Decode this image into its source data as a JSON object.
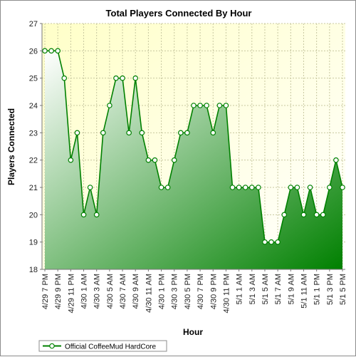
{
  "chart_data": {
    "type": "area",
    "title": "Total Players Connected By Hour",
    "xlabel": "Hour",
    "ylabel": "Players Connected",
    "ylim": [
      18,
      27
    ],
    "yticks": [
      18,
      19,
      20,
      21,
      22,
      23,
      24,
      25,
      26,
      27
    ],
    "grid": true,
    "legend_position": "bottom-left",
    "categories": [
      "4/29 7 PM",
      "4/29 8 PM",
      "4/29 9 PM",
      "4/29 10 PM",
      "4/29 11 PM",
      "4/30 12 AM",
      "4/30 1 AM",
      "4/30 2 AM",
      "4/30 3 AM",
      "4/30 4 AM",
      "4/30 5 AM",
      "4/30 6 AM",
      "4/30 7 AM",
      "4/30 8 AM",
      "4/30 9 AM",
      "4/30 10 AM",
      "4/30 11 AM",
      "4/30 12 PM",
      "4/30 1 PM",
      "4/30 2 PM",
      "4/30 3 PM",
      "4/30 4 PM",
      "4/30 5 PM",
      "4/30 6 PM",
      "4/30 7 PM",
      "4/30 8 PM",
      "4/30 9 PM",
      "4/30 10 PM",
      "4/30 11 PM",
      "5/1 12 AM",
      "5/1 1 AM",
      "5/1 2 AM",
      "5/1 3 AM",
      "5/1 4 AM",
      "5/1 5 AM",
      "5/1 6 AM",
      "5/1 7 AM",
      "5/1 8 AM",
      "5/1 9 AM",
      "5/1 10 AM",
      "5/1 11 AM",
      "5/1 12 PM",
      "5/1 1 PM",
      "5/1 2 PM",
      "5/1 3 PM",
      "5/1 4 PM",
      "5/1 5 PM"
    ],
    "tick_labels": [
      "4/29 7 PM",
      "4/29 9 PM",
      "4/29 11 PM",
      "4/30 1 AM",
      "4/30 3 AM",
      "4/30 5 AM",
      "4/30 7 AM",
      "4/30 9 AM",
      "4/30 11 AM",
      "4/30 1 PM",
      "4/30 3 PM",
      "4/30 5 PM",
      "4/30 7 PM",
      "4/30 9 PM",
      "4/30 11 PM",
      "5/1 1 AM",
      "5/1 3 AM",
      "5/1 5 AM",
      "5/1 7 AM",
      "5/1 9 AM",
      "5/1 11 AM",
      "5/1 1 PM",
      "5/1 3 PM",
      "5/1 5 PM"
    ],
    "series": [
      {
        "name": "Official CoffeeMud HardCore",
        "color": "#008000",
        "values": [
          26,
          26,
          26,
          25,
          22,
          23,
          20,
          21,
          20,
          23,
          24,
          25,
          25,
          23,
          25,
          23,
          22,
          22,
          21,
          21,
          22,
          23,
          23,
          24,
          24,
          24,
          23,
          24,
          24,
          21,
          21,
          21,
          21,
          21,
          19,
          19,
          19,
          20,
          21,
          21,
          20,
          21,
          20,
          20,
          21,
          22,
          21
        ]
      }
    ],
    "colors": {
      "plot_bg_top": "#ffffc8",
      "plot_bg_bottom": "#ffffff",
      "grid": "#c8c8a0",
      "line": "#008000",
      "fill_light": "#ffffff",
      "fill_dark": "#008000",
      "marker_fill": "#ffffff"
    }
  }
}
